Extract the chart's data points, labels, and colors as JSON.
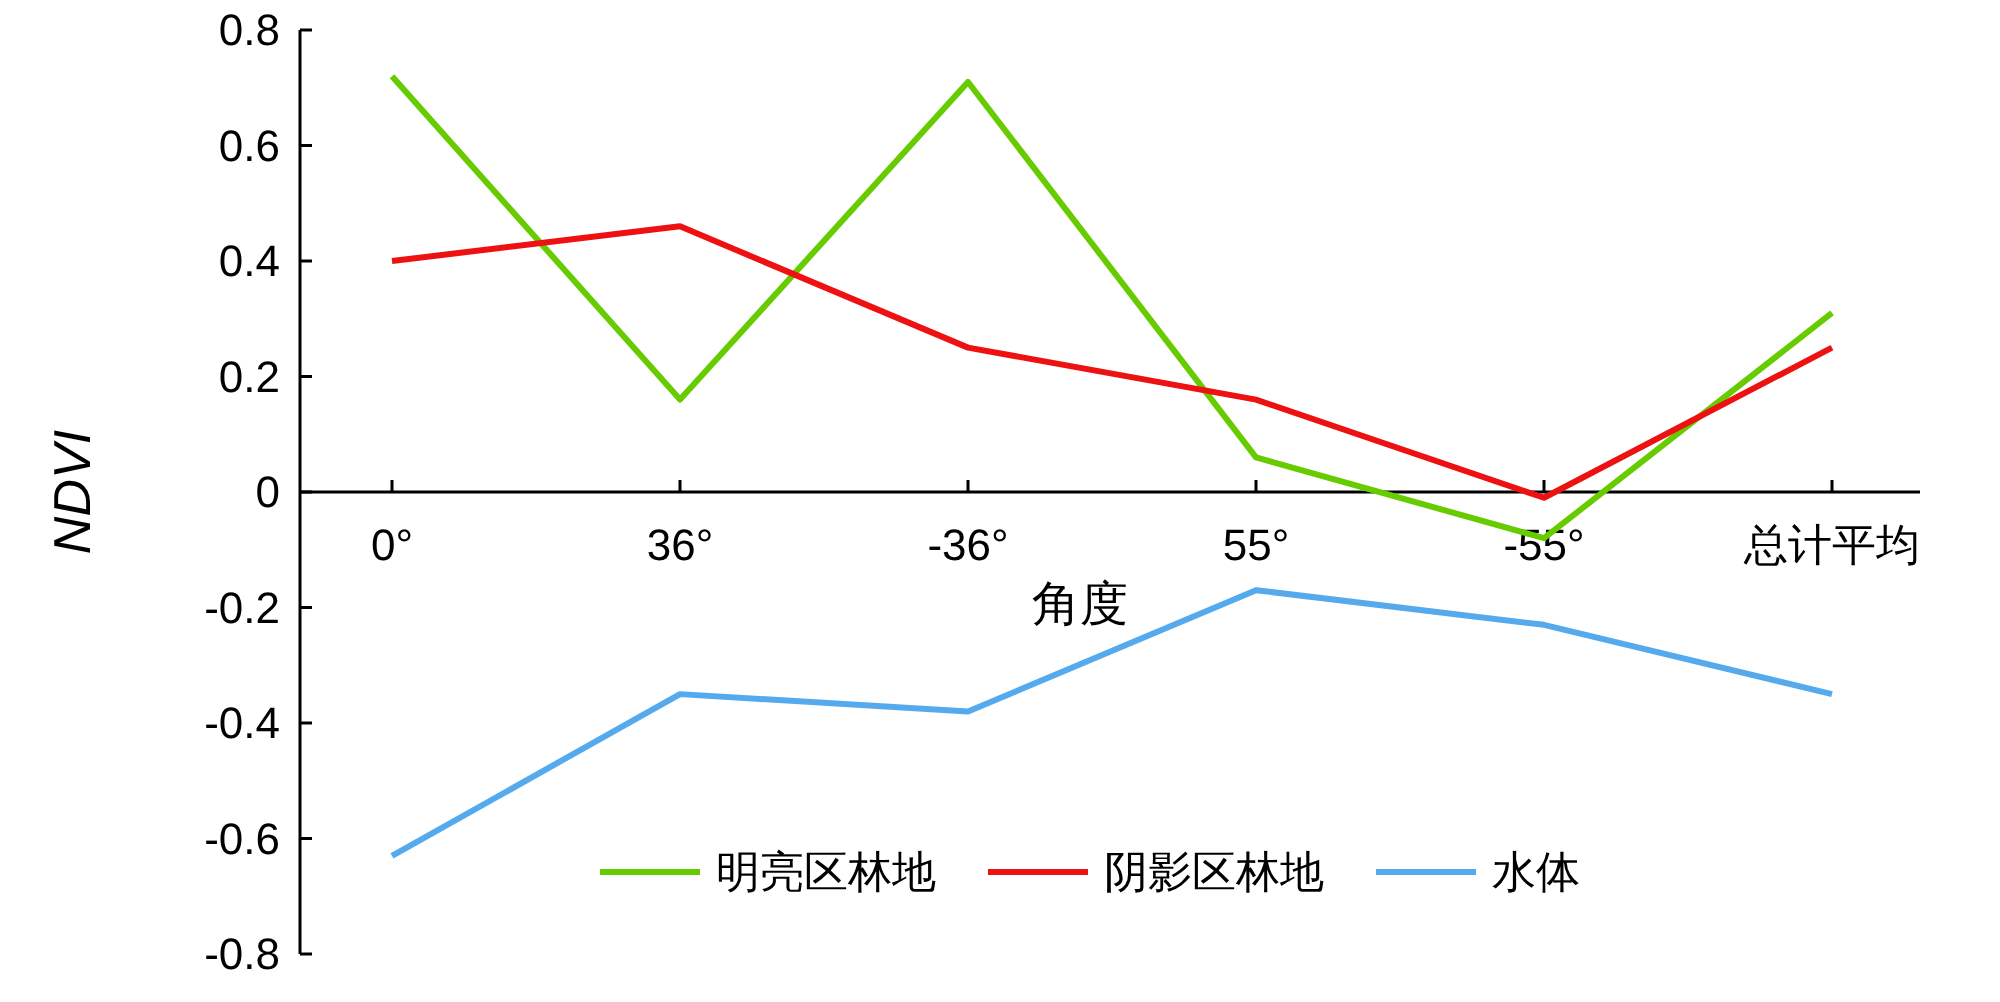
{
  "chart_data": {
    "type": "line",
    "xlabel": "角度",
    "ylabel": "NDVI",
    "categories": [
      "0°",
      "36°",
      "-36°",
      "55°",
      "-55°",
      "总计平均"
    ],
    "series": [
      {
        "name": "明亮区林地",
        "color": "#66cc00",
        "values": [
          0.72,
          0.16,
          0.71,
          0.06,
          -0.08,
          0.31
        ]
      },
      {
        "name": "阴影区林地",
        "color": "#ee1111",
        "values": [
          0.4,
          0.46,
          0.25,
          0.16,
          -0.01,
          0.25
        ]
      },
      {
        "name": "水体",
        "color": "#55aaee",
        "values": [
          -0.63,
          -0.35,
          -0.38,
          -0.17,
          -0.23,
          -0.35
        ]
      }
    ],
    "ylim": [
      -0.8,
      0.8
    ],
    "yticks": [
      -0.8,
      -0.6,
      -0.4,
      -0.2,
      0,
      0.2,
      0.4,
      0.6,
      0.8
    ],
    "grid": false,
    "legend": "bottom",
    "marker": "none",
    "line_style": "solid"
  }
}
